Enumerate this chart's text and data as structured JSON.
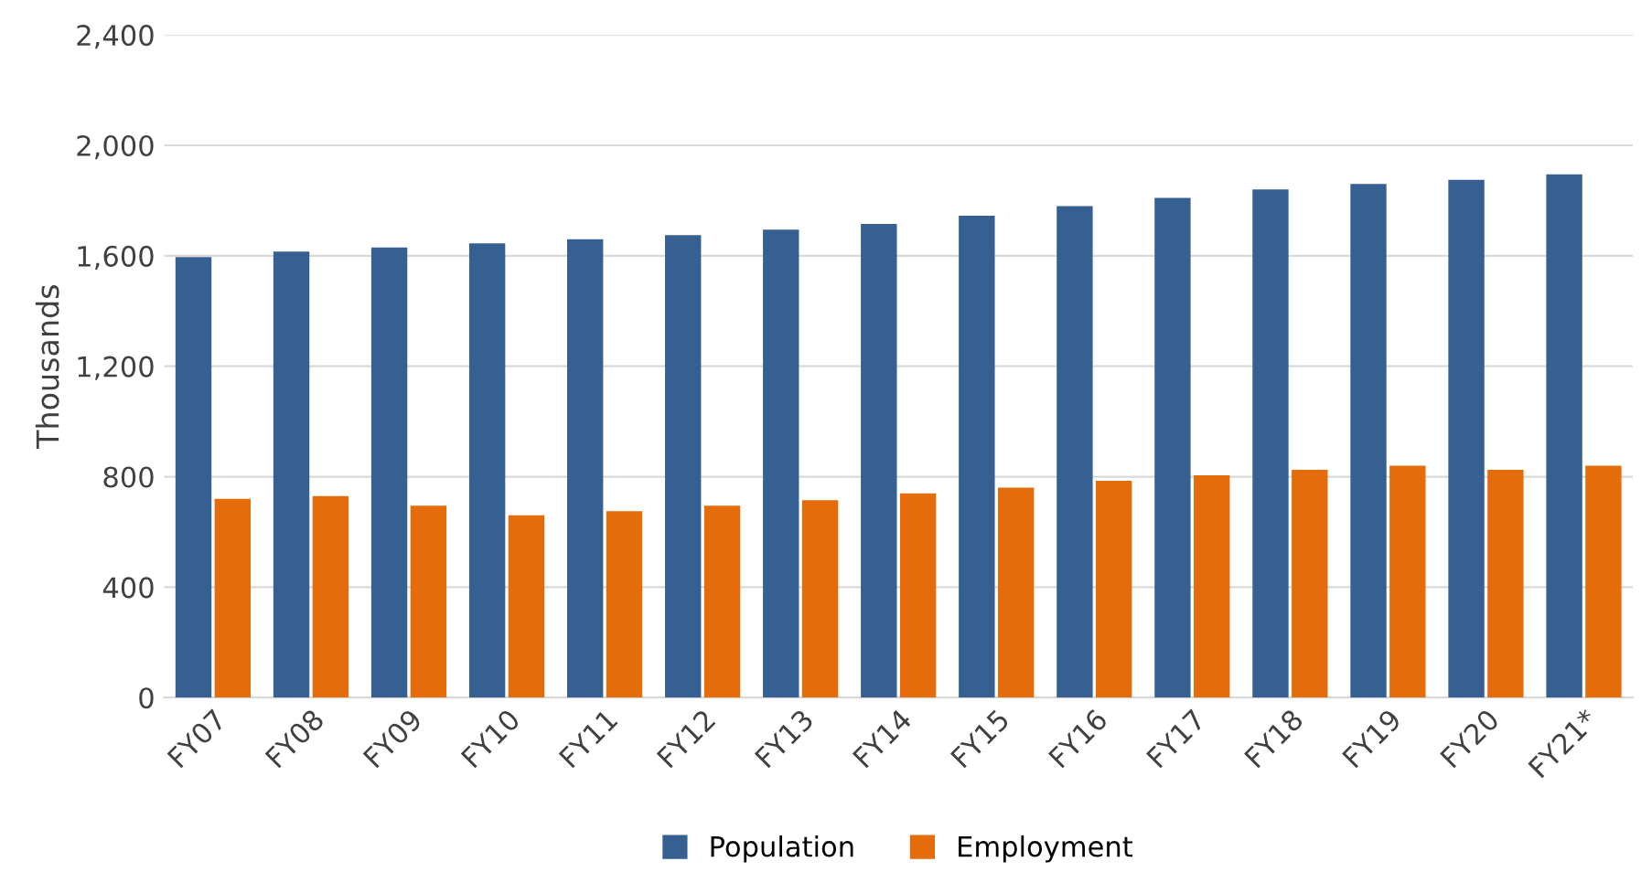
{
  "chart_data": {
    "type": "bar",
    "ylabel": "Thousands",
    "categories": [
      "FY07",
      "FY08",
      "FY09",
      "FY10",
      "FY11",
      "FY12",
      "FY13",
      "FY14",
      "FY15",
      "FY16",
      "FY17",
      "FY18",
      "FY19",
      "FY20",
      "FY21*"
    ],
    "series": [
      {
        "name": "Population",
        "color": "#376092",
        "values": [
          1595,
          1615,
          1630,
          1645,
          1660,
          1675,
          1695,
          1715,
          1745,
          1780,
          1810,
          1840,
          1860,
          1875,
          1895
        ]
      },
      {
        "name": "Employment",
        "color": "#e46c0a",
        "values": [
          720,
          730,
          695,
          660,
          675,
          695,
          715,
          740,
          760,
          785,
          805,
          825,
          840,
          825,
          840
        ]
      }
    ],
    "ylim": [
      0,
      2400
    ],
    "yticks": [
      0,
      400,
      {
        "value": 800,
        "label": "800"
      },
      {
        "value": 1200,
        "label": "1,200"
      },
      {
        "value": 1600,
        "label": "1,600"
      },
      {
        "value": 2000,
        "label": "2,000"
      },
      {
        "value": 2400,
        "label": "2,400"
      }
    ],
    "grid": "y",
    "legend": "bottom"
  }
}
